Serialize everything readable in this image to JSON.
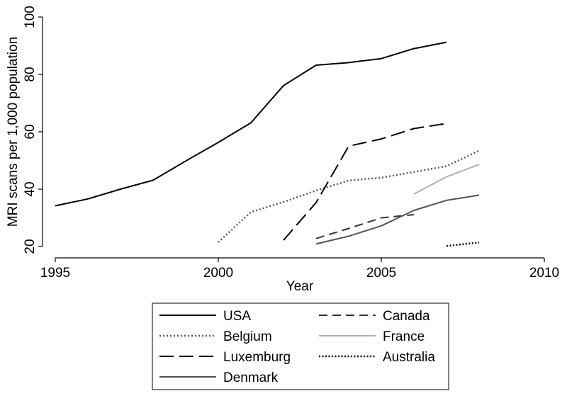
{
  "chart_data": {
    "type": "line",
    "xlabel": "Year",
    "ylabel": "MRI scans per 1,000 population",
    "xlim": [
      1995,
      2010
    ],
    "ylim": [
      20,
      100
    ],
    "xticks": [
      1995,
      2000,
      2005,
      2010
    ],
    "yticks": [
      20,
      40,
      60,
      80,
      100
    ],
    "grid": false,
    "legend_position": "bottom",
    "series": [
      {
        "name": "USA",
        "style": "solid",
        "color": "#000000",
        "x": [
          1995,
          1996,
          1997,
          1998,
          1999,
          2000,
          2001,
          2002,
          2003,
          2004,
          2005,
          2006,
          2007
        ],
        "y": [
          34.2,
          36.6,
          40,
          43.1,
          49.8,
          56.3,
          63.1,
          76.1,
          83.2,
          84.1,
          85.5,
          89,
          91.2
        ]
      },
      {
        "name": "Canada",
        "style": "dashed",
        "color": "#333333",
        "x": [
          2003,
          2004,
          2005,
          2006
        ],
        "y": [
          22.8,
          26.3,
          30,
          31.1
        ]
      },
      {
        "name": "Belgium",
        "style": "dotted",
        "color": "#555555",
        "x": [
          2000,
          2001,
          2002,
          2003,
          2004,
          2005,
          2006,
          2007,
          2008
        ],
        "y": [
          21.5,
          32,
          35.5,
          39.5,
          43,
          44,
          46,
          48,
          53.4
        ]
      },
      {
        "name": "France",
        "style": "solid",
        "color": "#b0b0b0",
        "x": [
          2006,
          2007,
          2008
        ],
        "y": [
          38.3,
          44.3,
          48.6
        ]
      },
      {
        "name": "Luxemburg",
        "style": "longdash",
        "color": "#000000",
        "x": [
          2002,
          2003,
          2004,
          2005,
          2006,
          2007
        ],
        "y": [
          22.2,
          35.3,
          55,
          57.5,
          61.1,
          62.9
        ]
      },
      {
        "name": "Australia",
        "style": "dotted-dense",
        "color": "#000000",
        "x": [
          2007,
          2008
        ],
        "y": [
          20.2,
          21.4
        ]
      },
      {
        "name": "Denmark",
        "style": "solid",
        "color": "#555555",
        "x": [
          2003,
          2004,
          2005,
          2006,
          2007,
          2008
        ],
        "y": [
          20.9,
          23.6,
          27.2,
          32.6,
          36.1,
          37.9
        ]
      }
    ]
  }
}
